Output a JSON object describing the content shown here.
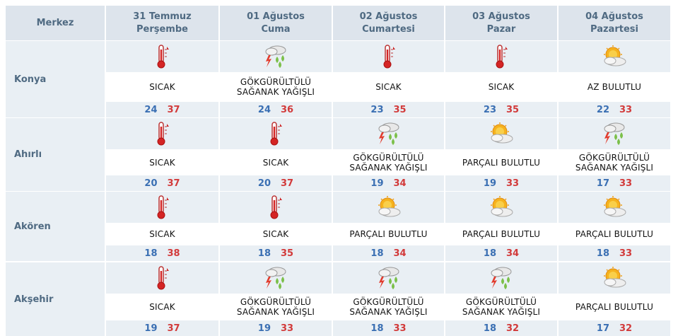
{
  "header": {
    "corner_label": "Merkez",
    "days": [
      {
        "date": "31 Temmuz",
        "weekday": "Perşembe"
      },
      {
        "date": "01 Ağustos",
        "weekday": "Cuma"
      },
      {
        "date": "02 Ağustos",
        "weekday": "Cumartesi"
      },
      {
        "date": "03 Ağustos",
        "weekday": "Pazar"
      },
      {
        "date": "04 Ağustos",
        "weekday": "Pazartesi"
      }
    ]
  },
  "colors": {
    "header_bg": "#dde4ec",
    "row_grey": "#e9eff4",
    "city_text": "#4f6a82",
    "min_temp": "#3a6fb3",
    "max_temp": "#d23a3a"
  },
  "rows": [
    {
      "city": "Konya",
      "days": [
        {
          "icon": "thermometer-icon",
          "desc1": "SICAK",
          "desc2": "",
          "min": "24",
          "max": "37"
        },
        {
          "icon": "thunderstorm-icon",
          "desc1": "GÖKGÜRÜLTÜLÜ",
          "desc2": "SAĞANAK YAĞIŞLI",
          "min": "24",
          "max": "36"
        },
        {
          "icon": "thermometer-icon",
          "desc1": "SICAK",
          "desc2": "",
          "min": "23",
          "max": "35"
        },
        {
          "icon": "thermometer-icon",
          "desc1": "SICAK",
          "desc2": "",
          "min": "23",
          "max": "35"
        },
        {
          "icon": "sun-cloud-icon",
          "desc1": "AZ BULUTLU",
          "desc2": "",
          "min": "22",
          "max": "33"
        }
      ]
    },
    {
      "city": "Ahırlı",
      "days": [
        {
          "icon": "thermometer-icon",
          "desc1": "SICAK",
          "desc2": "",
          "min": "20",
          "max": "37"
        },
        {
          "icon": "thermometer-icon",
          "desc1": "SICAK",
          "desc2": "",
          "min": "20",
          "max": "37"
        },
        {
          "icon": "thunderstorm-icon",
          "desc1": "GÖKGÜRÜLTÜLÜ",
          "desc2": "SAĞANAK YAĞIŞLI",
          "min": "19",
          "max": "34"
        },
        {
          "icon": "sun-cloud-icon",
          "desc1": "PARÇALI BULUTLU",
          "desc2": "",
          "min": "19",
          "max": "33"
        },
        {
          "icon": "thunderstorm-icon",
          "desc1": "GÖKGÜRÜLTÜLÜ",
          "desc2": "SAĞANAK YAĞIŞLI",
          "min": "17",
          "max": "33"
        }
      ]
    },
    {
      "city": "Akören",
      "days": [
        {
          "icon": "thermometer-icon",
          "desc1": "SICAK",
          "desc2": "",
          "min": "18",
          "max": "38"
        },
        {
          "icon": "thermometer-icon",
          "desc1": "SICAK",
          "desc2": "",
          "min": "18",
          "max": "35"
        },
        {
          "icon": "sun-cloud-icon",
          "desc1": "PARÇALI BULUTLU",
          "desc2": "",
          "min": "18",
          "max": "34"
        },
        {
          "icon": "sun-cloud-icon",
          "desc1": "PARÇALI BULUTLU",
          "desc2": "",
          "min": "18",
          "max": "34"
        },
        {
          "icon": "sun-cloud-icon",
          "desc1": "PARÇALI BULUTLU",
          "desc2": "",
          "min": "18",
          "max": "33"
        }
      ]
    },
    {
      "city": "Akşehir",
      "days": [
        {
          "icon": "thermometer-icon",
          "desc1": "SICAK",
          "desc2": "",
          "min": "19",
          "max": "37"
        },
        {
          "icon": "thunderstorm-icon",
          "desc1": "GÖKGÜRÜLTÜLÜ",
          "desc2": "SAĞANAK YAĞIŞLI",
          "min": "19",
          "max": "33"
        },
        {
          "icon": "thunderstorm-icon",
          "desc1": "GÖKGÜRÜLTÜLÜ",
          "desc2": "SAĞANAK YAĞIŞLI",
          "min": "18",
          "max": "33"
        },
        {
          "icon": "thunderstorm-icon",
          "desc1": "GÖKGÜRÜLTÜLÜ",
          "desc2": "SAĞANAK YAĞIŞLI",
          "min": "18",
          "max": "32"
        },
        {
          "icon": "sun-cloud-icon",
          "desc1": "PARÇALI BULUTLU",
          "desc2": "",
          "min": "17",
          "max": "32"
        }
      ]
    }
  ]
}
